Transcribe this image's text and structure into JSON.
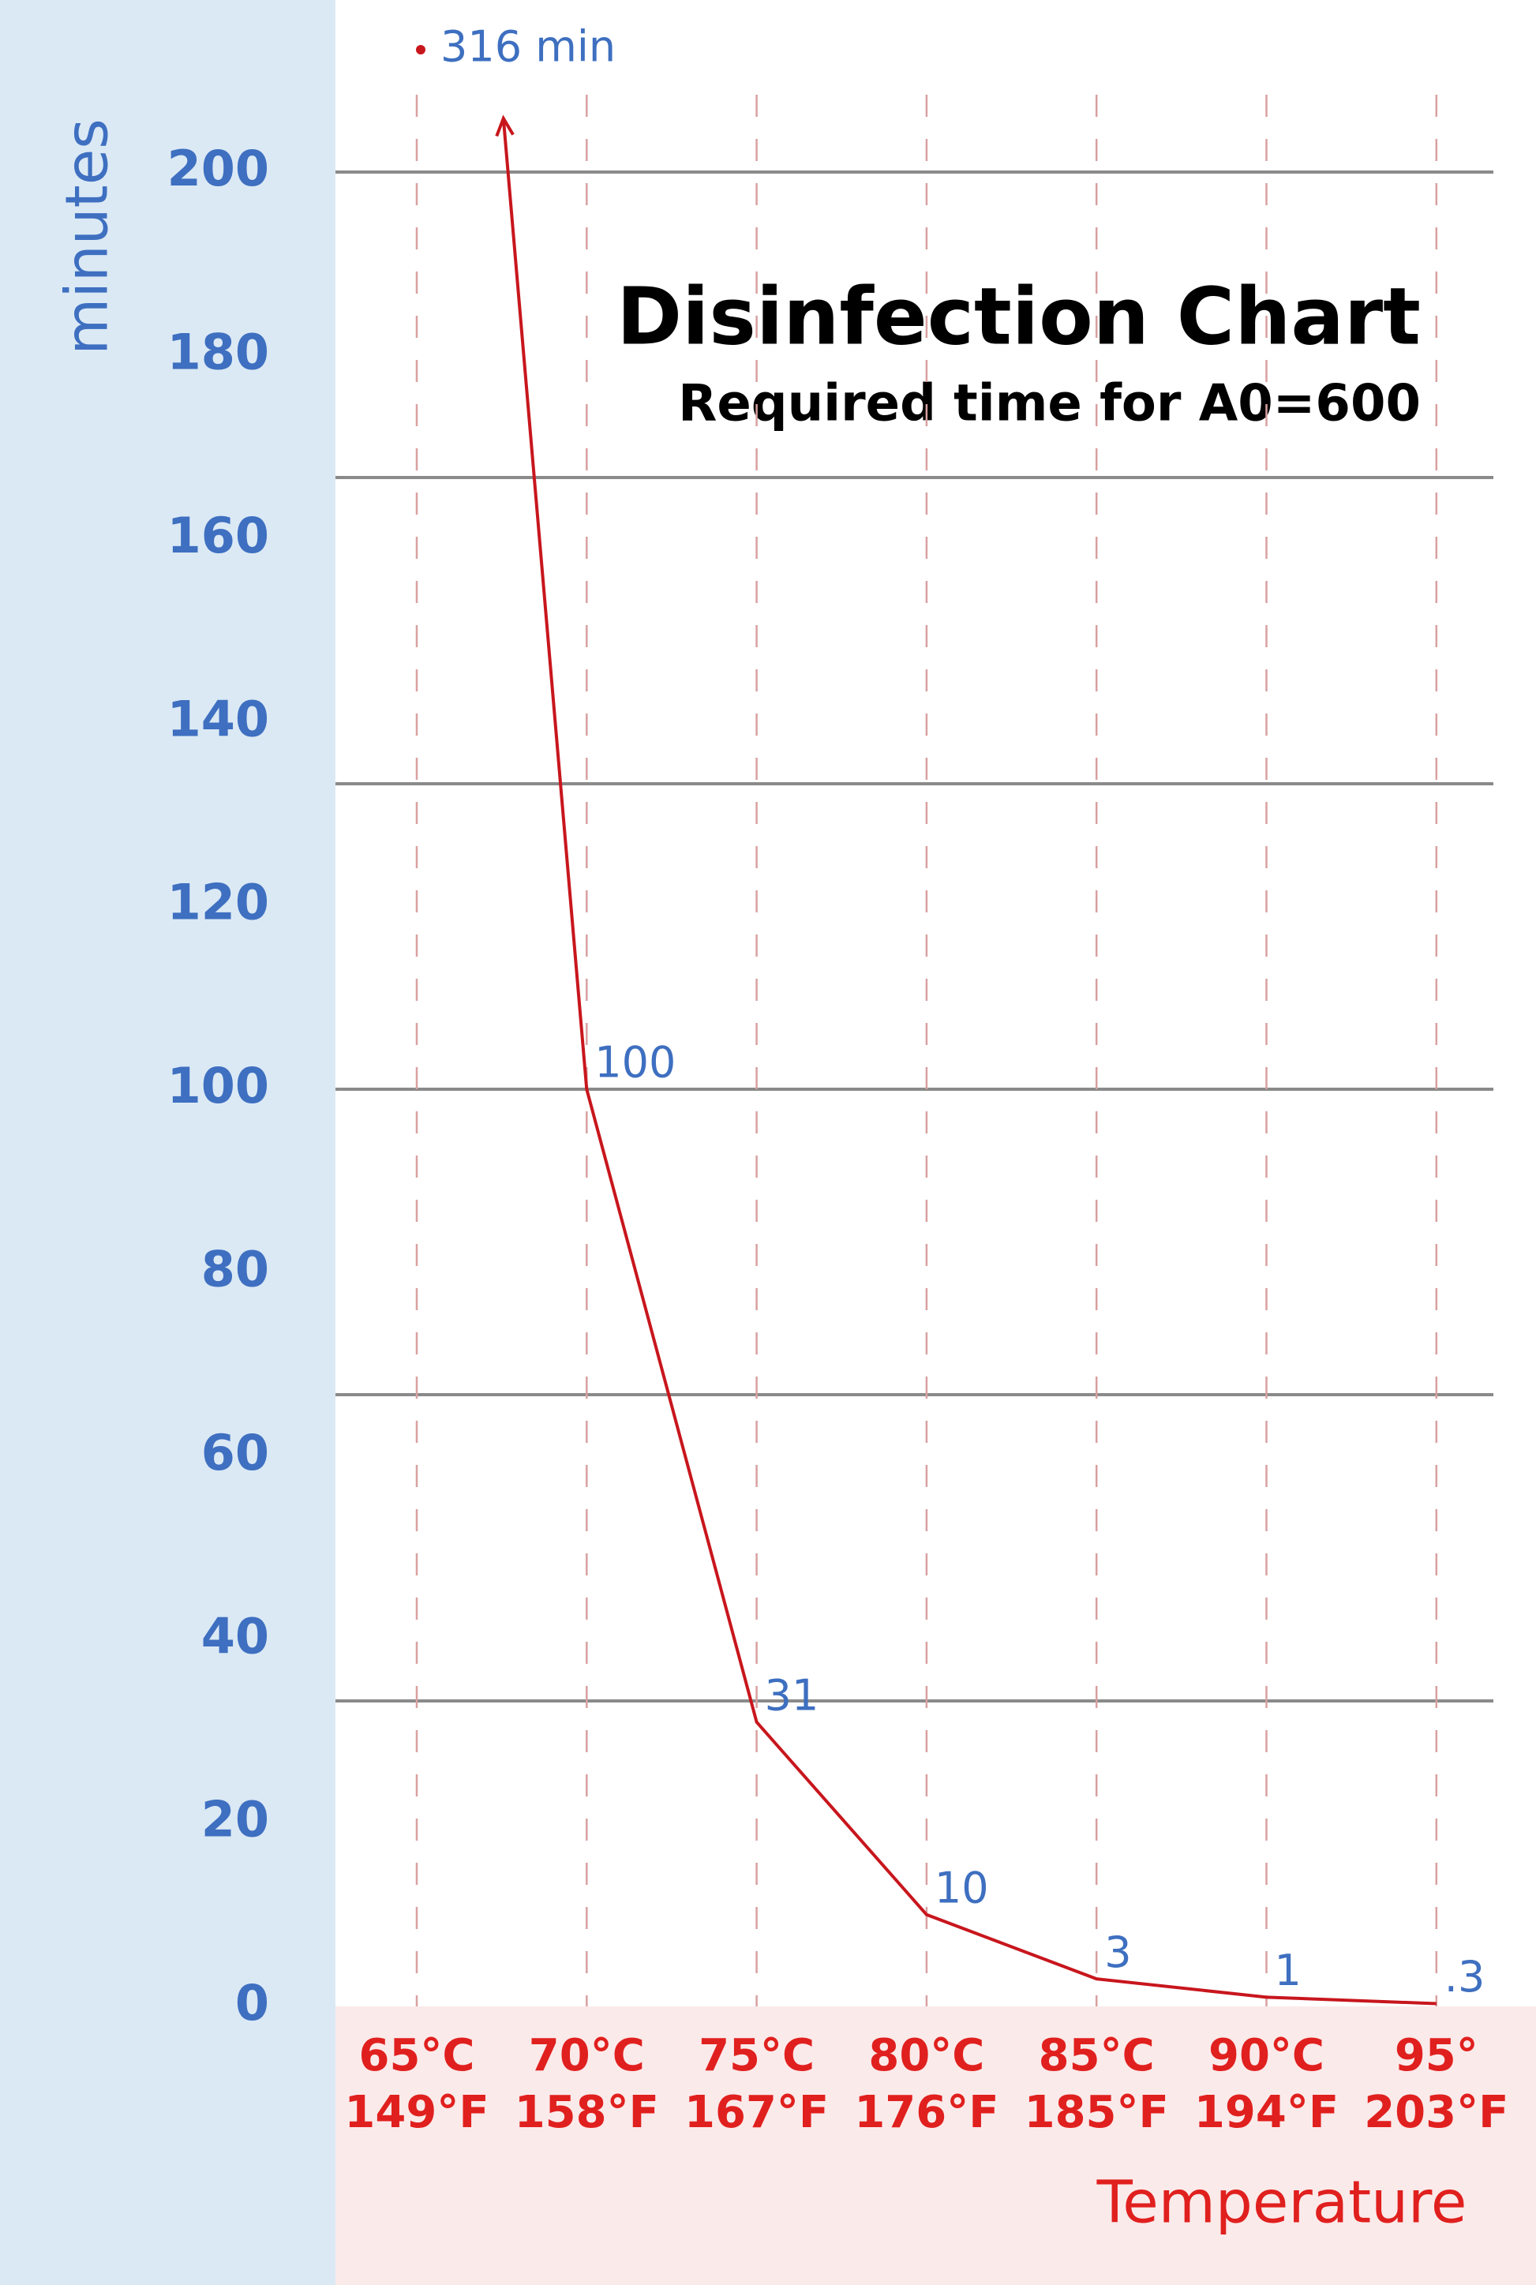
{
  "chart_data": {
    "type": "line",
    "title": "Disinfection Chart",
    "subtitle": "Required time for A0=600",
    "y_label": "minutes",
    "x_label": "Temperature",
    "categories": [
      "65°C",
      "70°C",
      "75°C",
      "80°C",
      "85°C",
      "90°C",
      "95°"
    ],
    "categories_f": [
      "149°F",
      "158°F",
      "167°F",
      "176°F",
      "185°F",
      "194°F",
      "203°F"
    ],
    "series": [
      {
        "color": "#c8161d",
        "values": [
          316,
          100,
          31,
          10,
          3,
          1,
          0.3
        ],
        "value_labels": [
          "316 min",
          "100",
          "31",
          "10",
          "3",
          "1",
          ".3"
        ]
      }
    ],
    "ylim": [
      0,
      200
    ],
    "yticks": [
      0,
      20,
      40,
      60,
      80,
      100,
      120,
      140,
      160,
      180,
      200
    ],
    "grid_values": [
      33.3,
      66.7,
      100,
      133.3,
      166.7,
      200
    ],
    "grid": true
  }
}
